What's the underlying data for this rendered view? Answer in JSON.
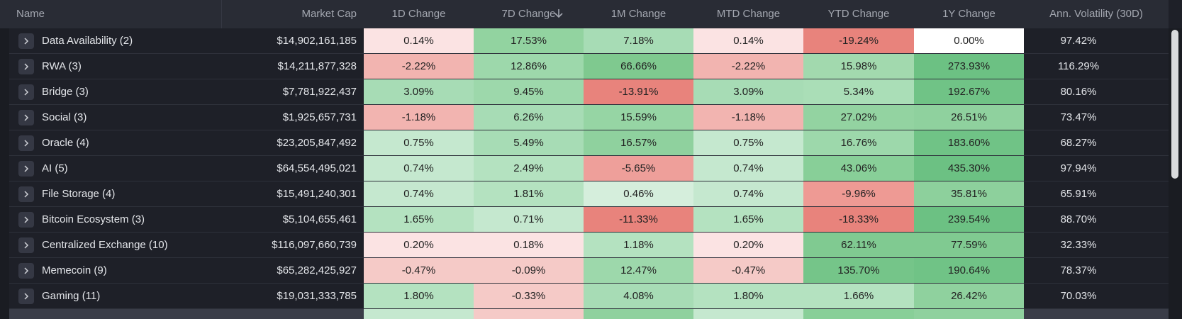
{
  "header": {
    "columns": [
      "Name",
      "Market Cap",
      "1D Change",
      "7D Change",
      "1M Change",
      "MTD Change",
      "YTD Change",
      "1Y Change",
      "Ann. Volatility (30D)"
    ]
  },
  "rows": [
    {
      "name": "Data Availability (2)",
      "market_cap": "$14,902,161,185",
      "cells": [
        {
          "text": "0.14%",
          "color": "#fbe3e3"
        },
        {
          "text": "17.53%",
          "color": "#92d3a0"
        },
        {
          "text": "7.18%",
          "color": "#a7dcb5"
        },
        {
          "text": "0.14%",
          "color": "#fbe3e3"
        },
        {
          "text": "-19.24%",
          "color": "#e8837c"
        },
        {
          "text": "0.00%",
          "color": "#ffffff"
        }
      ],
      "volatility": "97.42%"
    },
    {
      "name": "RWA (3)",
      "market_cap": "$14,211,877,328",
      "cells": [
        {
          "text": "-2.22%",
          "color": "#f2b4b0"
        },
        {
          "text": "12.86%",
          "color": "#9dd8ab"
        },
        {
          "text": "66.66%",
          "color": "#7fc98f"
        },
        {
          "text": "-2.22%",
          "color": "#f2b4b0"
        },
        {
          "text": "15.98%",
          "color": "#a2d9ae"
        },
        {
          "text": "273.93%",
          "color": "#6cc183"
        }
      ],
      "volatility": "116.29%"
    },
    {
      "name": "Bridge (3)",
      "market_cap": "$7,781,922,437",
      "cells": [
        {
          "text": "3.09%",
          "color": "#a7dcb5"
        },
        {
          "text": "9.45%",
          "color": "#9dd8ab"
        },
        {
          "text": "-13.91%",
          "color": "#e8837c"
        },
        {
          "text": "3.09%",
          "color": "#a7dcb5"
        },
        {
          "text": "5.34%",
          "color": "#aadeb7"
        },
        {
          "text": "192.67%",
          "color": "#70c386"
        }
      ],
      "volatility": "80.16%"
    },
    {
      "name": "Social (3)",
      "market_cap": "$1,925,657,731",
      "cells": [
        {
          "text": "-1.18%",
          "color": "#f2b4b0"
        },
        {
          "text": "6.26%",
          "color": "#a7dcb5"
        },
        {
          "text": "15.59%",
          "color": "#96d5a4"
        },
        {
          "text": "-1.18%",
          "color": "#f2b4b0"
        },
        {
          "text": "27.02%",
          "color": "#93d3a1"
        },
        {
          "text": "26.51%",
          "color": "#8fd19e"
        }
      ],
      "volatility": "73.47%"
    },
    {
      "name": "Oracle (4)",
      "market_cap": "$23,205,847,492",
      "cells": [
        {
          "text": "0.75%",
          "color": "#c5e8cf"
        },
        {
          "text": "5.49%",
          "color": "#a7dcb5"
        },
        {
          "text": "16.57%",
          "color": "#8fd19e"
        },
        {
          "text": "0.75%",
          "color": "#c5e8cf"
        },
        {
          "text": "16.76%",
          "color": "#9dd8ab"
        },
        {
          "text": "183.60%",
          "color": "#70c386"
        }
      ],
      "volatility": "68.27%"
    },
    {
      "name": "AI (5)",
      "market_cap": "$64,554,495,021",
      "cells": [
        {
          "text": "0.74%",
          "color": "#c5e8cf"
        },
        {
          "text": "2.49%",
          "color": "#b4e2c0"
        },
        {
          "text": "-5.65%",
          "color": "#ee9f9a"
        },
        {
          "text": "0.74%",
          "color": "#c5e8cf"
        },
        {
          "text": "43.06%",
          "color": "#88cf98"
        },
        {
          "text": "435.30%",
          "color": "#6cc183"
        }
      ],
      "volatility": "97.94%"
    },
    {
      "name": "File Storage (4)",
      "market_cap": "$15,491,240,301",
      "cells": [
        {
          "text": "0.74%",
          "color": "#c5e8cf"
        },
        {
          "text": "1.81%",
          "color": "#b4e2c0"
        },
        {
          "text": "0.46%",
          "color": "#d5eedc"
        },
        {
          "text": "0.74%",
          "color": "#c5e8cf"
        },
        {
          "text": "-9.96%",
          "color": "#ee9a94"
        },
        {
          "text": "35.81%",
          "color": "#8dd09c"
        }
      ],
      "volatility": "65.91%"
    },
    {
      "name": "Bitcoin Ecosystem (3)",
      "market_cap": "$5,104,655,461",
      "cells": [
        {
          "text": "1.65%",
          "color": "#b4e2c0"
        },
        {
          "text": "0.71%",
          "color": "#c5e8cf"
        },
        {
          "text": "-11.33%",
          "color": "#e8837c"
        },
        {
          "text": "1.65%",
          "color": "#b4e2c0"
        },
        {
          "text": "-18.33%",
          "color": "#e8837c"
        },
        {
          "text": "239.54%",
          "color": "#6cc183"
        }
      ],
      "volatility": "88.70%"
    },
    {
      "name": "Centralized Exchange (10)",
      "market_cap": "$116,097,660,739",
      "cells": [
        {
          "text": "0.20%",
          "color": "#fbe3e3"
        },
        {
          "text": "0.18%",
          "color": "#fbe3e3"
        },
        {
          "text": "1.18%",
          "color": "#b4e2c0"
        },
        {
          "text": "0.20%",
          "color": "#fbe3e3"
        },
        {
          "text": "62.11%",
          "color": "#80ca91"
        },
        {
          "text": "77.59%",
          "color": "#80ca91"
        }
      ],
      "volatility": "32.33%"
    },
    {
      "name": "Memecoin (9)",
      "market_cap": "$65,282,425,927",
      "cells": [
        {
          "text": "-0.47%",
          "color": "#f5cac7"
        },
        {
          "text": "-0.09%",
          "color": "#f5cac7"
        },
        {
          "text": "12.47%",
          "color": "#9dd8ab"
        },
        {
          "text": "-0.47%",
          "color": "#f5cac7"
        },
        {
          "text": "135.70%",
          "color": "#75c589"
        },
        {
          "text": "190.64%",
          "color": "#70c386"
        }
      ],
      "volatility": "78.37%"
    },
    {
      "name": "Gaming (11)",
      "market_cap": "$19,031,333,785",
      "cells": [
        {
          "text": "1.80%",
          "color": "#b4e2c0"
        },
        {
          "text": "-0.33%",
          "color": "#f5cac7"
        },
        {
          "text": "4.08%",
          "color": "#a7dcb5"
        },
        {
          "text": "1.80%",
          "color": "#b4e2c0"
        },
        {
          "text": "1.66%",
          "color": "#b4e2c0"
        },
        {
          "text": "26.42%",
          "color": "#8fd19e"
        }
      ],
      "volatility": "70.03%"
    }
  ]
}
